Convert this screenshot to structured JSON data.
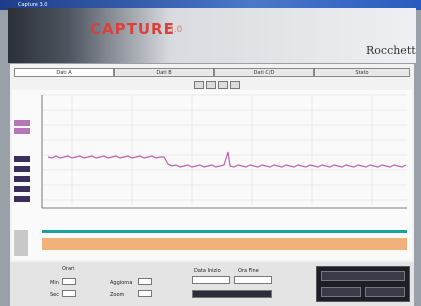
{
  "header": {
    "window_title": "Capture 3.0",
    "product": "CAPTURE",
    "version": "3.0",
    "brand": "Rocchett"
  },
  "tabs": [
    "Dati A",
    "Dati B",
    "Dati C/D",
    "Stato"
  ],
  "controls": {
    "group": "Orari",
    "min_label": "Min",
    "sec_label": "Sec",
    "update_label": "Aggiorna",
    "zoom_label": "Zoom",
    "data_label": "Data Inizio",
    "time_label": "Ora Fine"
  }
}
